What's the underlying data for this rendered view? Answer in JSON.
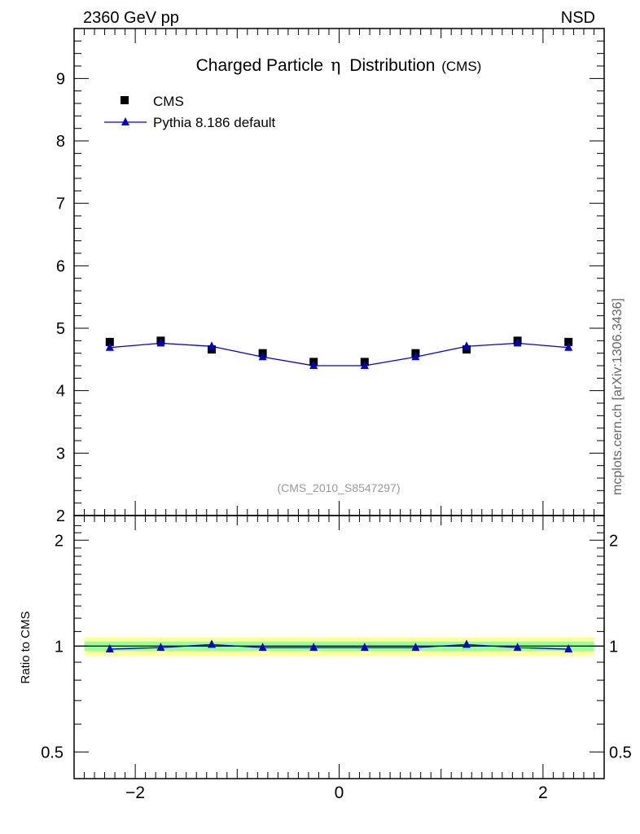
{
  "header": {
    "left": "2360 GeV pp",
    "right": "NSD"
  },
  "title": {
    "main": "Charged Particle",
    "eta": "η",
    "word": "Distribution",
    "suffix": "(CMS)"
  },
  "watermark": "mcplots.cern.ch [arXiv:1306.3436]",
  "analysis_label": "(CMS_2010_S8547297)",
  "legend": [
    {
      "label": "CMS",
      "marker": "square",
      "color": "#000000"
    },
    {
      "label": "Pythia 8.186 default",
      "marker": "triangle",
      "color": "#0000cc"
    }
  ],
  "colors": {
    "data": "#000000",
    "mc": "#0000cc",
    "band_outer": "#ffff99",
    "band_inner": "#99ff99"
  },
  "chart_data": [
    {
      "type": "scatter",
      "panel": "main",
      "x": [
        -2.25,
        -1.75,
        -1.25,
        -0.75,
        -0.25,
        0.25,
        0.75,
        1.25,
        1.75,
        2.25
      ],
      "series": [
        {
          "name": "CMS",
          "values": [
            4.78,
            4.8,
            4.66,
            4.6,
            4.46,
            4.46,
            4.6,
            4.66,
            4.8,
            4.78
          ]
        },
        {
          "name": "Pythia 8.186 default",
          "values": [
            4.69,
            4.76,
            4.71,
            4.54,
            4.4,
            4.4,
            4.54,
            4.71,
            4.76,
            4.69
          ]
        }
      ],
      "xlim": [
        -2.6,
        2.6
      ],
      "ylim": [
        2,
        9.8
      ],
      "yticks": [
        2,
        3,
        4,
        5,
        6,
        7,
        8,
        9
      ],
      "xlabel": "",
      "ylabel": "",
      "legend_position": "top-left"
    },
    {
      "type": "line",
      "panel": "ratio",
      "x": [
        -2.25,
        -1.75,
        -1.25,
        -0.75,
        -0.25,
        0.25,
        0.75,
        1.25,
        1.75,
        2.25
      ],
      "series": [
        {
          "name": "Pythia 8.186 default",
          "values": [
            0.98,
            0.99,
            1.01,
            0.99,
            0.99,
            0.99,
            0.99,
            1.01,
            0.99,
            0.98
          ]
        }
      ],
      "band_outer": [
        0.94,
        1.06
      ],
      "band_inner": [
        0.97,
        1.03
      ],
      "xlim": [
        -2.6,
        2.6
      ],
      "ylim": [
        0.42,
        2.35
      ],
      "ylog": true,
      "yticks": [
        "0.5",
        "1",
        "2"
      ],
      "xticks": [
        "−2",
        "0",
        "2"
      ],
      "xlabel": "",
      "ylabel": "Ratio to CMS"
    }
  ]
}
